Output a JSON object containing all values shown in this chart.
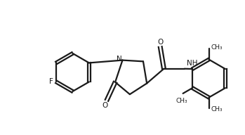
{
  "bg_color": "#ffffff",
  "line_color": "#1a1a1a",
  "text_color": "#1a1a1a",
  "line_width": 1.6,
  "font_size": 7.5,
  "figsize": [
    3.49,
    1.92
  ],
  "dpi": 100,
  "xlim": [
    0,
    10
  ],
  "ylim": [
    0,
    5.5
  ]
}
